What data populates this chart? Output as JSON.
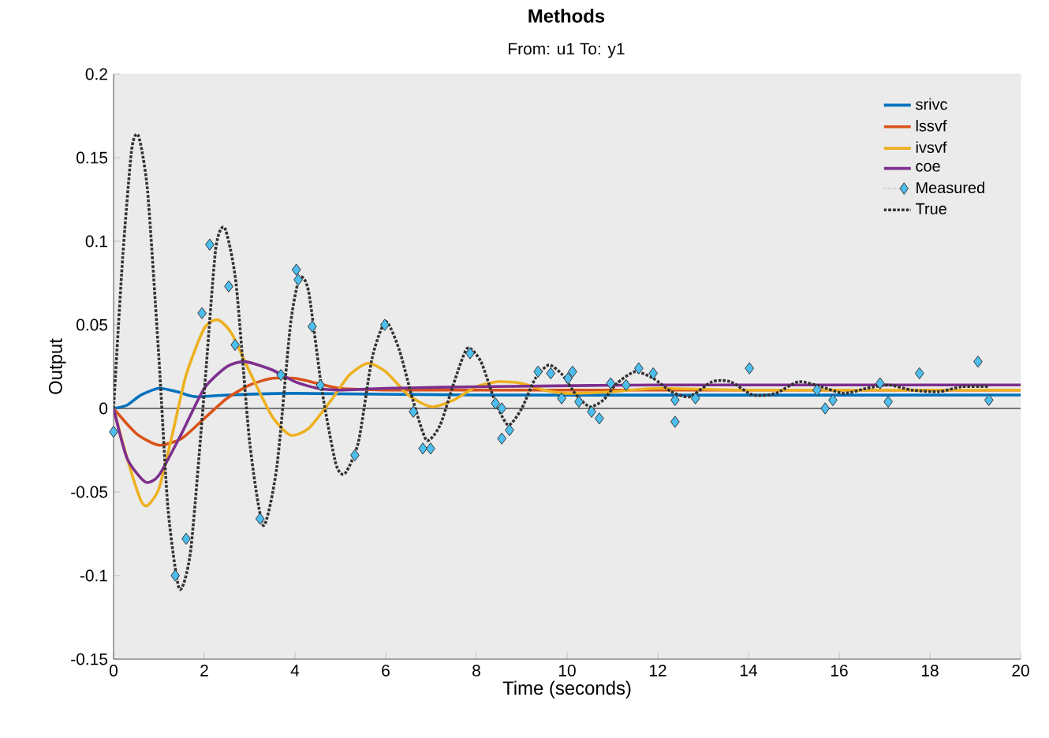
{
  "chart_data": {
    "type": "line",
    "title": "Methods",
    "subtitle": "From: u1  To: y1",
    "xlabel": "Time (seconds)",
    "ylabel": "Output",
    "xlim": [
      0,
      20
    ],
    "ylim": [
      -0.15,
      0.2
    ],
    "xticks": [
      0,
      2,
      4,
      6,
      8,
      10,
      12,
      14,
      16,
      18,
      20
    ],
    "yticks": [
      -0.15,
      -0.1,
      -0.05,
      0,
      0.05,
      0.1,
      0.15,
      0.2
    ],
    "grid": true,
    "legend": "top right",
    "ref_lines": [
      {
        "axis": "y",
        "value": 0,
        "color": "#000000"
      }
    ],
    "series": [
      {
        "name": "srivc",
        "color": "#0072bd",
        "x": [
          0,
          0.3,
          0.6,
          1.0,
          1.4,
          1.8,
          2.5,
          4,
          8,
          20
        ],
        "values": [
          0,
          0.002,
          0.008,
          0.012,
          0.01,
          0.007,
          0.008,
          0.009,
          0.008,
          0.008
        ]
      },
      {
        "name": "lssvf",
        "color": "#d95319",
        "x": [
          0,
          0.5,
          1.0,
          1.5,
          2,
          2.5,
          3,
          3.5,
          4,
          4.5,
          5,
          6,
          8,
          20
        ],
        "values": [
          0,
          -0.015,
          -0.022,
          -0.018,
          -0.006,
          0.006,
          0.014,
          0.018,
          0.018,
          0.015,
          0.012,
          0.011,
          0.011,
          0.011
        ]
      },
      {
        "name": "ivsvf",
        "color": "#edb120",
        "x": [
          0,
          0.3,
          0.6,
          0.75,
          1.0,
          1.3,
          1.6,
          2.0,
          2.3,
          2.6,
          3.0,
          3.5,
          3.9,
          4.3,
          4.8,
          5.2,
          5.6,
          6.0,
          6.5,
          7.0,
          7.5,
          8.0,
          8.5,
          9,
          9.5,
          10,
          11,
          12,
          14,
          20
        ],
        "values": [
          0,
          -0.03,
          -0.055,
          -0.058,
          -0.048,
          -0.015,
          0.02,
          0.048,
          0.053,
          0.045,
          0.022,
          -0.005,
          -0.016,
          -0.012,
          0.005,
          0.02,
          0.027,
          0.022,
          0.008,
          0.001,
          0.005,
          0.013,
          0.016,
          0.015,
          0.011,
          0.009,
          0.01,
          0.012,
          0.011,
          0.011
        ]
      },
      {
        "name": "coe",
        "color": "#7e2f8e",
        "x": [
          0,
          0.3,
          0.7,
          1.0,
          1.5,
          2.0,
          2.5,
          2.9,
          3.5,
          4,
          4.5,
          5,
          6,
          8,
          12,
          20
        ],
        "values": [
          0,
          -0.03,
          -0.044,
          -0.04,
          -0.015,
          0.012,
          0.025,
          0.028,
          0.023,
          0.016,
          0.012,
          0.011,
          0.012,
          0.013,
          0.014,
          0.014
        ]
      },
      {
        "name": "Measured",
        "color": "#4dbeee",
        "type": "scatter",
        "marker": "diamond",
        "x": [
          0,
          1.36,
          1.6,
          1.95,
          2.12,
          2.54,
          2.68,
          3.23,
          3.69,
          4.03,
          4.07,
          4.38,
          4.56,
          5.32,
          5.98,
          6.61,
          6.82,
          6.99,
          7.86,
          8.42,
          8.56,
          8.56,
          8.73,
          9.36,
          9.64,
          9.88,
          10.02,
          10.12,
          10.26,
          10.54,
          10.71,
          10.96,
          11.3,
          11.58,
          11.9,
          12.38,
          12.38,
          12.83,
          14.02,
          15.51,
          15.69,
          15.86,
          16.9,
          17.08,
          17.77,
          19.06,
          19.3
        ],
        "values": [
          -0.014,
          -0.1,
          -0.078,
          0.057,
          0.098,
          0.073,
          0.038,
          -0.066,
          0.02,
          0.083,
          0.077,
          0.049,
          0.014,
          -0.028,
          0.05,
          -0.002,
          -0.024,
          -0.024,
          0.033,
          0.003,
          0,
          -0.018,
          -0.013,
          0.022,
          0.021,
          0.006,
          0.018,
          0.022,
          0.004,
          -0.002,
          -0.006,
          0.015,
          0.014,
          0.024,
          0.021,
          0.005,
          -0.008,
          0.006,
          0.024,
          0.011,
          0,
          0.005,
          0.015,
          0.004,
          0.021,
          0.028,
          0.005
        ]
      },
      {
        "name": "True",
        "color": "#333333",
        "line_style": "dotted",
        "x": [
          0,
          0.2,
          0.4,
          0.55,
          0.75,
          1.0,
          1.2,
          1.45,
          1.7,
          2.0,
          2.25,
          2.45,
          2.7,
          3.0,
          3.3,
          3.6,
          3.9,
          4.1,
          4.3,
          4.6,
          4.9,
          5.1,
          5.4,
          5.7,
          6.0,
          6.3,
          6.6,
          6.9,
          7.2,
          7.5,
          7.8,
          8.1,
          8.4,
          8.7,
          9.0,
          9.3,
          9.6,
          9.9,
          10.2,
          10.5,
          10.8,
          11.1,
          11.5,
          11.9,
          12.3,
          12.7,
          13.2,
          13.6,
          14.1,
          14.6,
          15.1,
          15.6,
          16.1,
          16.6,
          17.1,
          17.6,
          18.2,
          18.7,
          19.3
        ],
        "values": [
          0,
          0.09,
          0.155,
          0.163,
          0.13,
          0.03,
          -0.06,
          -0.108,
          -0.085,
          0.01,
          0.095,
          0.108,
          0.075,
          -0.02,
          -0.07,
          -0.035,
          0.05,
          0.078,
          0.07,
          0.01,
          -0.033,
          -0.039,
          -0.02,
          0.03,
          0.052,
          0.035,
          0.005,
          -0.019,
          -0.01,
          0.015,
          0.036,
          0.028,
          0.005,
          -0.01,
          0,
          0.018,
          0.026,
          0.02,
          0.008,
          0.001,
          0.005,
          0.015,
          0.022,
          0.018,
          0.01,
          0.007,
          0.016,
          0.016,
          0.008,
          0.009,
          0.016,
          0.013,
          0.009,
          0.012,
          0.014,
          0.011,
          0.01,
          0.013,
          0.013
        ]
      }
    ]
  }
}
